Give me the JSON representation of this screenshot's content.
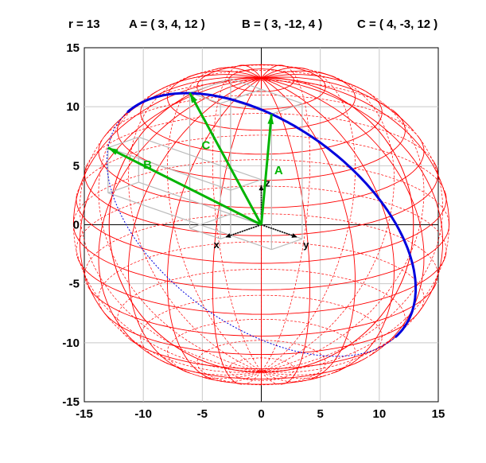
{
  "header": {
    "radius": "r = 13",
    "point_a": "A = ( 3, 4, 12 )",
    "point_b": "B = ( 3, -12, 4 )",
    "point_c": "C = ( 4, -3, 12 )"
  },
  "chart_data": {
    "type": "3d-sphere-projection",
    "radius": 13,
    "xlim": [
      -15,
      15
    ],
    "ylim": [
      -15,
      15
    ],
    "xticks": [
      "-15",
      "-10",
      "-5",
      "0",
      "5",
      "10",
      "15"
    ],
    "yticks": [
      "15",
      "10",
      "5",
      "0",
      "-5",
      "-10",
      "-15"
    ],
    "grid": true,
    "vectors": [
      {
        "name": "A",
        "coords": [
          3,
          4,
          12
        ],
        "color": "#00b400"
      },
      {
        "name": "B",
        "coords": [
          3,
          -12,
          4
        ],
        "color": "#00b400"
      },
      {
        "name": "C",
        "coords": [
          4,
          -3,
          12
        ],
        "color": "#00b400"
      }
    ],
    "axis_labels": {
      "x": "x",
      "y": "y",
      "z": "z"
    },
    "great_circle": {
      "through": [
        "A",
        "B"
      ],
      "color": "#0000dd"
    },
    "sphere_color": "#ff0000",
    "box_color": "#bbbbbb"
  }
}
